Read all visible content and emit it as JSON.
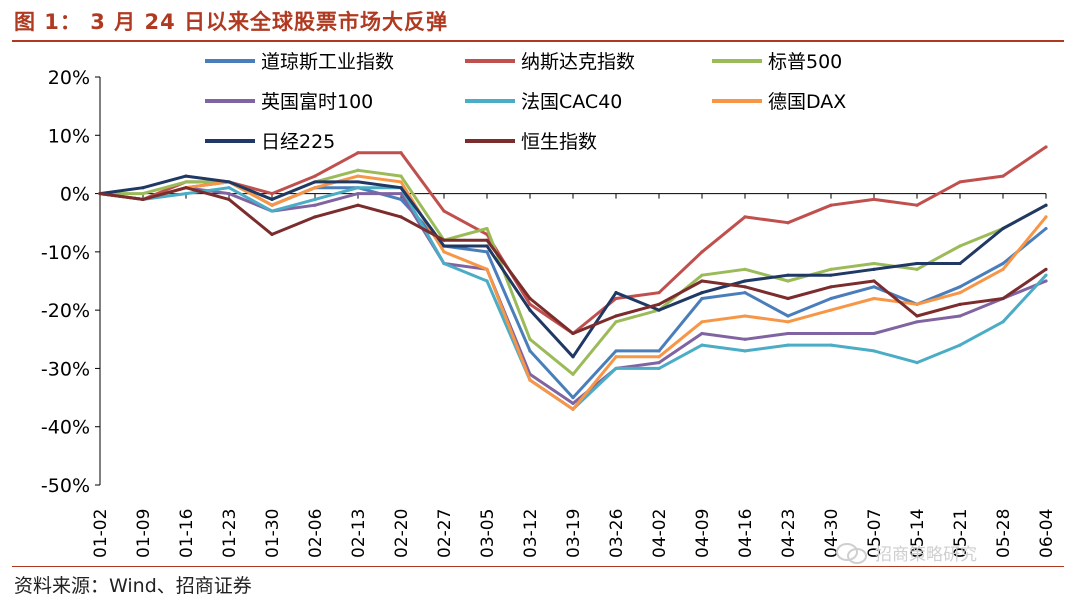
{
  "figure": {
    "title": "图 1： 3 月 24 日以来全球股票市场大反弹",
    "source": "资料来源：Wind、招商证券",
    "watermark": "招商策略研究",
    "watermark_icon": "wechat-icon"
  },
  "chart_data": {
    "type": "line",
    "ylim": [
      -50,
      20
    ],
    "yticks": [
      "20%",
      "10%",
      "0%",
      "-10%",
      "-20%",
      "-30%",
      "-40%",
      "-50%"
    ],
    "ytick_values": [
      20,
      10,
      0,
      -10,
      -20,
      -30,
      -40,
      -50
    ],
    "x_labels": [
      "01-02",
      "01-09",
      "01-16",
      "01-23",
      "01-30",
      "02-06",
      "02-13",
      "02-20",
      "02-27",
      "03-05",
      "03-12",
      "03-19",
      "03-26",
      "04-02",
      "04-09",
      "04-16",
      "04-23",
      "04-30",
      "05-07",
      "05-14",
      "05-21",
      "05-28",
      "06-04"
    ],
    "legend_position": "top",
    "grid": false,
    "series": [
      {
        "name": "道琼斯工业指数",
        "color": "#4a7ebb",
        "points": [
          [
            0,
            0
          ],
          [
            1,
            -1
          ],
          [
            2,
            1
          ],
          [
            3,
            2
          ],
          [
            4,
            -2
          ],
          [
            5,
            1
          ],
          [
            6,
            1
          ],
          [
            7,
            -1
          ],
          [
            8,
            -9
          ],
          [
            9,
            -10
          ],
          [
            10,
            -27
          ],
          [
            11,
            -35
          ],
          [
            12,
            -27
          ],
          [
            13,
            -27
          ],
          [
            14,
            -18
          ],
          [
            15,
            -17
          ],
          [
            16,
            -21
          ],
          [
            17,
            -18
          ],
          [
            18,
            -16
          ],
          [
            19,
            -19
          ],
          [
            20,
            -16
          ],
          [
            21,
            -12
          ],
          [
            22,
            -6
          ]
        ]
      },
      {
        "name": "纳斯达克指数",
        "color": "#c0504d",
        "points": [
          [
            0,
            0
          ],
          [
            1,
            -1
          ],
          [
            2,
            2
          ],
          [
            3,
            2
          ],
          [
            4,
            0
          ],
          [
            5,
            3
          ],
          [
            6,
            7
          ],
          [
            7,
            7
          ],
          [
            8,
            -3
          ],
          [
            9,
            -7
          ],
          [
            10,
            -19
          ],
          [
            11,
            -24
          ],
          [
            12,
            -18
          ],
          [
            13,
            -17
          ],
          [
            14,
            -10
          ],
          [
            15,
            -4
          ],
          [
            16,
            -5
          ],
          [
            17,
            -2
          ],
          [
            18,
            -1
          ],
          [
            19,
            -2
          ],
          [
            20,
            2
          ],
          [
            21,
            3
          ],
          [
            22,
            8
          ]
        ]
      },
      {
        "name": "标普500",
        "color": "#9bbb59",
        "points": [
          [
            0,
            0
          ],
          [
            1,
            0
          ],
          [
            2,
            2
          ],
          [
            3,
            2
          ],
          [
            4,
            -1
          ],
          [
            5,
            2
          ],
          [
            6,
            4
          ],
          [
            7,
            3
          ],
          [
            8,
            -8
          ],
          [
            9,
            -6
          ],
          [
            10,
            -25
          ],
          [
            11,
            -31
          ],
          [
            12,
            -22
          ],
          [
            13,
            -20
          ],
          [
            14,
            -14
          ],
          [
            15,
            -13
          ],
          [
            16,
            -15
          ],
          [
            17,
            -13
          ],
          [
            18,
            -12
          ],
          [
            19,
            -13
          ],
          [
            20,
            -9
          ],
          [
            21,
            -6
          ],
          [
            22,
            -2
          ]
        ]
      },
      {
        "name": "英国富时100",
        "color": "#8064a2",
        "points": [
          [
            0,
            0
          ],
          [
            1,
            -1
          ],
          [
            2,
            1
          ],
          [
            3,
            0
          ],
          [
            4,
            -3
          ],
          [
            5,
            -2
          ],
          [
            6,
            0
          ],
          [
            7,
            0
          ],
          [
            8,
            -12
          ],
          [
            9,
            -13
          ],
          [
            10,
            -31
          ],
          [
            11,
            -36
          ],
          [
            12,
            -30
          ],
          [
            13,
            -29
          ],
          [
            14,
            -24
          ],
          [
            15,
            -25
          ],
          [
            16,
            -24
          ],
          [
            17,
            -24
          ],
          [
            18,
            -24
          ],
          [
            19,
            -22
          ],
          [
            20,
            -21
          ],
          [
            21,
            -18
          ],
          [
            22,
            -15
          ]
        ]
      },
      {
        "name": "法国CAC40",
        "color": "#4bacc6",
        "points": [
          [
            0,
            0
          ],
          [
            1,
            -1
          ],
          [
            2,
            0
          ],
          [
            3,
            1
          ],
          [
            4,
            -3
          ],
          [
            5,
            -1
          ],
          [
            6,
            1
          ],
          [
            7,
            1
          ],
          [
            8,
            -12
          ],
          [
            9,
            -15
          ],
          [
            10,
            -32
          ],
          [
            11,
            -37
          ],
          [
            12,
            -30
          ],
          [
            13,
            -30
          ],
          [
            14,
            -26
          ],
          [
            15,
            -27
          ],
          [
            16,
            -26
          ],
          [
            17,
            -26
          ],
          [
            18,
            -27
          ],
          [
            19,
            -29
          ],
          [
            20,
            -26
          ],
          [
            21,
            -22
          ],
          [
            22,
            -14
          ]
        ]
      },
      {
        "name": "德国DAX",
        "color": "#f79646",
        "points": [
          [
            0,
            0
          ],
          [
            1,
            -1
          ],
          [
            2,
            1
          ],
          [
            3,
            2
          ],
          [
            4,
            -2
          ],
          [
            5,
            1
          ],
          [
            6,
            3
          ],
          [
            7,
            2
          ],
          [
            8,
            -10
          ],
          [
            9,
            -13
          ],
          [
            10,
            -32
          ],
          [
            11,
            -37
          ],
          [
            12,
            -28
          ],
          [
            13,
            -28
          ],
          [
            14,
            -22
          ],
          [
            15,
            -21
          ],
          [
            16,
            -22
          ],
          [
            17,
            -20
          ],
          [
            18,
            -18
          ],
          [
            19,
            -19
          ],
          [
            20,
            -17
          ],
          [
            21,
            -13
          ],
          [
            22,
            -4
          ]
        ]
      },
      {
        "name": "日经225",
        "color": "#1f3864",
        "points": [
          [
            0,
            0
          ],
          [
            1,
            1
          ],
          [
            2,
            3
          ],
          [
            3,
            2
          ],
          [
            4,
            -1
          ],
          [
            5,
            2
          ],
          [
            6,
            2
          ],
          [
            7,
            1
          ],
          [
            8,
            -9
          ],
          [
            9,
            -9
          ],
          [
            10,
            -20
          ],
          [
            11,
            -28
          ],
          [
            12,
            -17
          ],
          [
            13,
            -20
          ],
          [
            14,
            -17
          ],
          [
            15,
            -15
          ],
          [
            16,
            -14
          ],
          [
            17,
            -14
          ],
          [
            18,
            -13
          ],
          [
            19,
            -12
          ],
          [
            20,
            -12
          ],
          [
            21,
            -6
          ],
          [
            22,
            -2
          ]
        ]
      },
      {
        "name": "恒生指数",
        "color": "#7b2c2c",
        "points": [
          [
            0,
            0
          ],
          [
            1,
            -1
          ],
          [
            2,
            1
          ],
          [
            3,
            -1
          ],
          [
            4,
            -7
          ],
          [
            5,
            -4
          ],
          [
            6,
            -2
          ],
          [
            7,
            -4
          ],
          [
            8,
            -8
          ],
          [
            9,
            -8
          ],
          [
            10,
            -18
          ],
          [
            11,
            -24
          ],
          [
            12,
            -21
          ],
          [
            13,
            -19
          ],
          [
            14,
            -15
          ],
          [
            15,
            -16
          ],
          [
            16,
            -18
          ],
          [
            17,
            -16
          ],
          [
            18,
            -15
          ],
          [
            19,
            -21
          ],
          [
            20,
            -19
          ],
          [
            21,
            -18
          ],
          [
            22,
            -13
          ]
        ]
      }
    ]
  }
}
